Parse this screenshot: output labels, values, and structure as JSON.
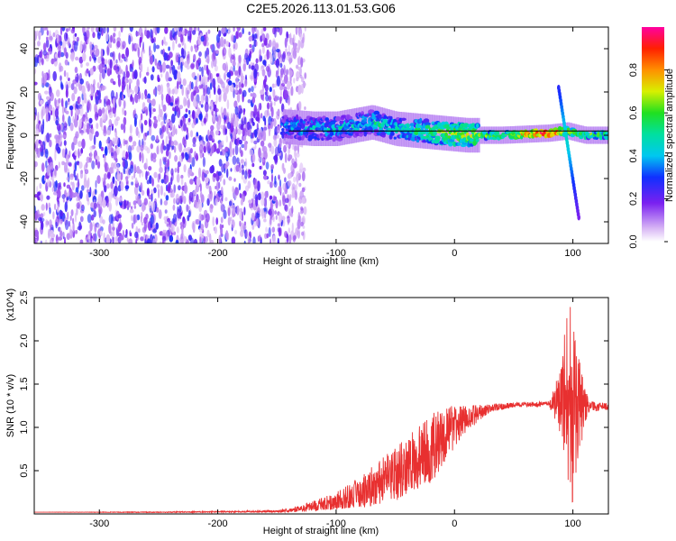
{
  "title": "C2E5.2026.113.01.53.G06",
  "chart_data": [
    {
      "type": "heatmap",
      "xlabel": "Height of straight line (km)",
      "ylabel": "Frequency (Hz)",
      "xlim": [
        -355,
        130
      ],
      "ylim": [
        -50,
        50
      ],
      "xticks": [
        -300,
        -200,
        -100,
        0,
        100
      ],
      "yticks": [
        -40,
        -20,
        0,
        20,
        40
      ],
      "colorbar": {
        "label": "Normalized spectral amplitude",
        "range": [
          0.0,
          1.0
        ],
        "ticks": [
          "0.0",
          "0.2",
          "0.4",
          "0.6",
          "0.8"
        ],
        "colormap": "white-purple-blue-cyan-green-yellow-orange-red-magenta"
      },
      "noise_region_x": [
        -355,
        -140
      ],
      "signal_track": [
        {
          "x": -145,
          "f": 4,
          "amp": 0.35
        },
        {
          "x": -120,
          "f": 3,
          "amp": 0.4
        },
        {
          "x": -100,
          "f": 3,
          "amp": 0.4
        },
        {
          "x": -70,
          "f": 6,
          "amp": 0.45
        },
        {
          "x": -50,
          "f": 3,
          "amp": 0.45
        },
        {
          "x": -30,
          "f": 2,
          "amp": 0.5
        },
        {
          "x": -10,
          "f": 1,
          "amp": 0.6
        },
        {
          "x": 10,
          "f": 0,
          "amp": 0.65
        },
        {
          "x": 40,
          "f": 0,
          "amp": 0.6
        },
        {
          "x": 80,
          "f": 1,
          "amp": 0.95
        },
        {
          "x": 95,
          "f": 2,
          "amp": 0.7
        },
        {
          "x": 110,
          "f": 0,
          "amp": 0.6
        },
        {
          "x": 130,
          "f": 0,
          "amp": 0.55
        }
      ],
      "reference_line_f": 0,
      "doppler_streak": {
        "x": [
          88,
          105
        ],
        "f": [
          22,
          -38
        ]
      }
    },
    {
      "type": "line",
      "xlabel": "Height of straight line (km)",
      "ylabel": "SNR (10 * v/v)",
      "y_multiplier": "(x10^4)",
      "xlim": [
        -355,
        130
      ],
      "ylim": [
        0,
        2.5
      ],
      "xticks": [
        -300,
        -200,
        -100,
        0,
        100
      ],
      "yticks": [
        0.5,
        1.0,
        1.5,
        2.0,
        2.5
      ],
      "line_color": "#e83030",
      "series": [
        {
          "x": [
            -355,
            -250,
            -150,
            -130,
            -100,
            -80,
            -60,
            -40,
            -20,
            -5,
            10,
            30,
            50,
            80,
            90,
            95,
            100,
            105,
            110,
            115,
            130
          ],
          "y": [
            0.02,
            0.02,
            0.03,
            0.06,
            0.15,
            0.25,
            0.38,
            0.55,
            0.75,
            0.95,
            1.1,
            1.22,
            1.26,
            1.27,
            1.3,
            1.2,
            1.25,
            1.22,
            1.25,
            1.24,
            1.24
          ],
          "spread": [
            0.0,
            0.005,
            0.01,
            0.04,
            0.1,
            0.18,
            0.28,
            0.35,
            0.4,
            0.3,
            0.15,
            0.05,
            0.03,
            0.03,
            0.4,
            1.2,
            1.15,
            0.6,
            0.2,
            0.06,
            0.04
          ]
        }
      ]
    }
  ]
}
